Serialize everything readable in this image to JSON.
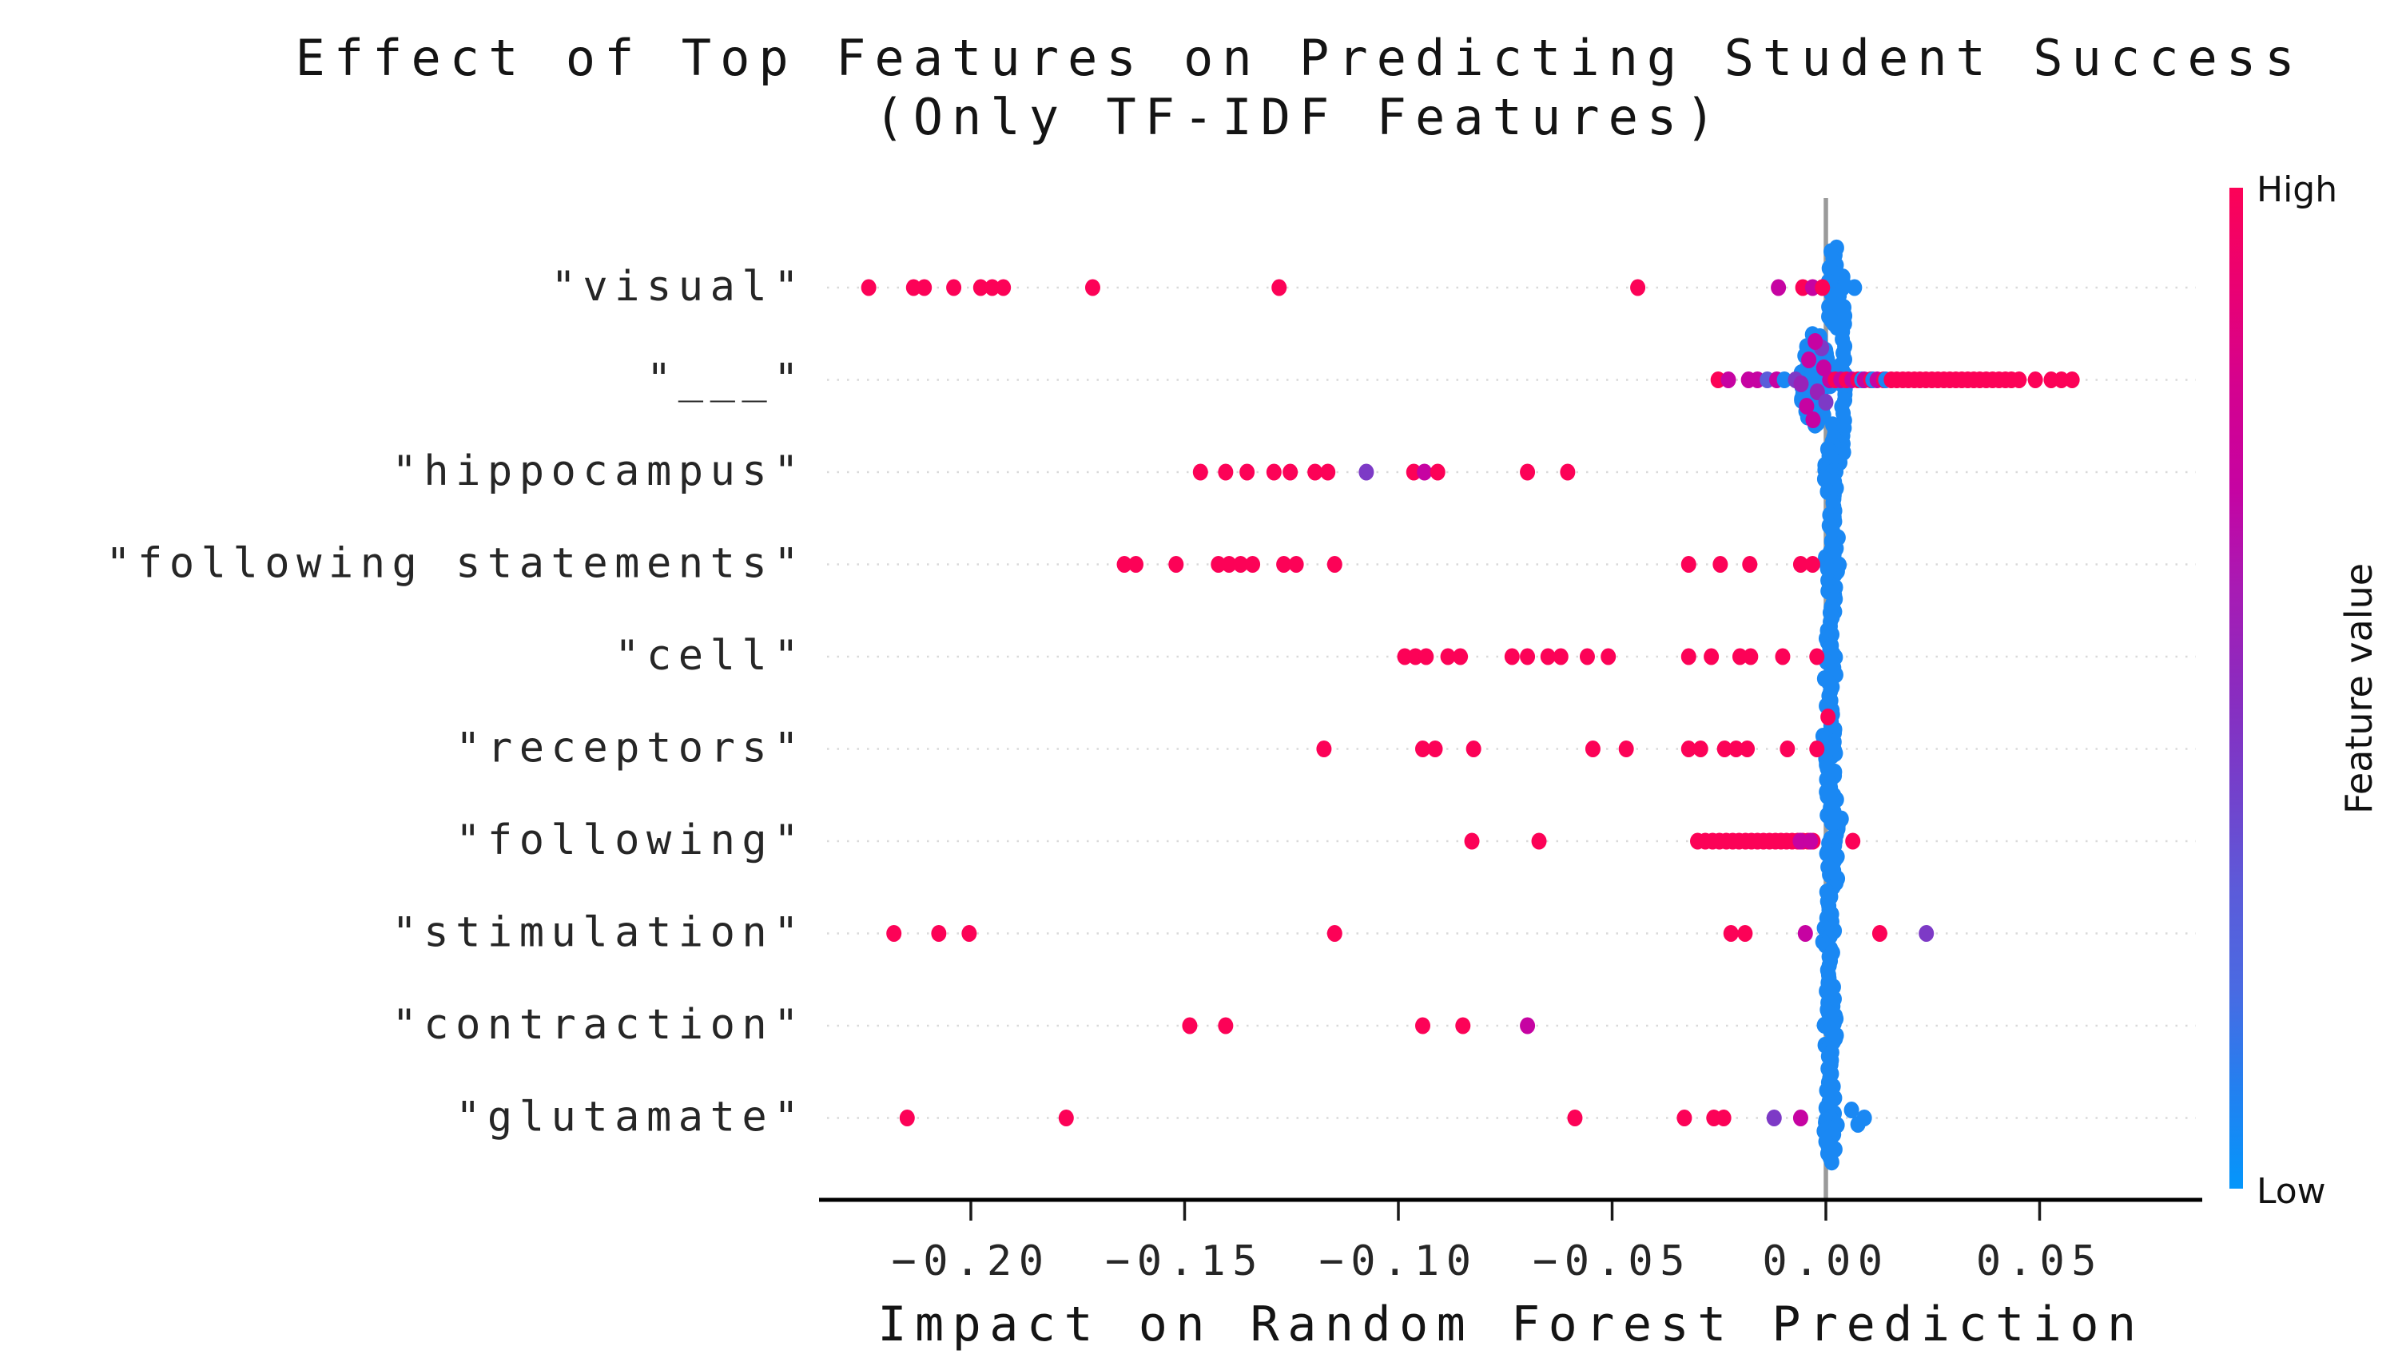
{
  "chart_data": {
    "type": "scatter",
    "subtype": "shap-beeswarm",
    "title_line1": "Effect of Top Features on Predicting Student Success",
    "title_line2": "(Only TF-IDF Features)",
    "xlabel": "Impact on Random Forest Prediction",
    "xlim": [
      -0.2346,
      0.0873
    ],
    "x_ticks": [
      -0.2,
      -0.15,
      -0.1,
      -0.05,
      0.0,
      0.05
    ],
    "x_tick_labels": [
      "−0.20",
      "−0.15",
      "−0.10",
      "−0.05",
      "0.00",
      "0.05"
    ],
    "grid": "dotted-horizontal-per-row",
    "zero_line_color": "#9a9a9a",
    "background": "#ffffff",
    "colorbar": {
      "high_label": "High",
      "low_label": "Low",
      "axis_label": "Feature value",
      "color_high": "#fc0257",
      "color_mid": "#8b2bbf",
      "color_low": "#0496fb",
      "gradient_top_to_bottom": [
        "#fc0257",
        "#ea0173",
        "#d4028f",
        "#c603a2",
        "#a81bb4",
        "#8b2bbf",
        "#7440cb",
        "#5c5bd9",
        "#4a6ae2",
        "#2380f0",
        "#0496fb"
      ]
    },
    "colormap_stops": [
      [
        0,
        "#0496fb"
      ],
      [
        0.26,
        "#4a6ae2"
      ],
      [
        0.4,
        "#6a50d0"
      ],
      [
        0.57,
        "#8b2bbf"
      ],
      [
        0.7,
        "#c603a2"
      ],
      [
        0.85,
        "#e6017e"
      ],
      [
        1,
        "#fc0257"
      ]
    ],
    "point_note": "points = [shap_value, y_jitter_px, feature_value_t(0=Low,1=High)]",
    "features": [
      {
        "label": "\"visual\"",
        "points": [
          [
            -0.2239,
            0,
            1
          ],
          [
            -0.2134,
            0,
            1
          ],
          [
            -0.2109,
            0,
            1
          ],
          [
            -0.204,
            0,
            1
          ],
          [
            -0.1977,
            0,
            1
          ],
          [
            -0.195,
            0,
            1
          ],
          [
            -0.1924,
            0,
            1
          ],
          [
            -0.1715,
            0,
            1
          ],
          [
            -0.1279,
            0,
            1
          ],
          [
            -0.044,
            0,
            1
          ],
          [
            -0.0111,
            0,
            0.7
          ],
          [
            -0.0054,
            0,
            1
          ],
          [
            -0.0031,
            0,
            0.7
          ],
          [
            -0.0008,
            0,
            1
          ],
          [
            0.0067,
            0,
            0.08
          ]
        ],
        "clusters": [
          {
            "cx": 0.002,
            "w": 0.0022,
            "h": 52,
            "n": 30,
            "t": 0.08
          }
        ]
      },
      {
        "label": "\"___\"",
        "points": [
          [
            -0.0252,
            0,
            1
          ],
          [
            -0.0228,
            0,
            0.7
          ],
          [
            -0.0181,
            0,
            0.7
          ],
          [
            -0.016,
            0,
            0.7
          ],
          [
            -0.0137,
            0,
            0.33
          ],
          [
            -0.0115,
            0,
            0.7
          ],
          [
            -0.0097,
            0,
            0.08
          ],
          [
            -0.0071,
            0,
            0.5
          ],
          [
            -0.004,
            -25,
            0.7
          ],
          [
            -0.002,
            15,
            0.6
          ],
          [
            -0.0045,
            33,
            0.7
          ],
          [
            -0.001,
            -40,
            0.5
          ],
          [
            -0.003,
            50,
            0.7
          ],
          [
            -0.0005,
            -15,
            0.7
          ],
          [
            -0.0058,
            5,
            0.6
          ],
          [
            0.0,
            28,
            0.5
          ],
          [
            -0.0025,
            -48,
            0.7
          ],
          [
            0.0009,
            0,
            0.7
          ],
          [
            0.0022,
            0,
            1
          ],
          [
            0.0035,
            0,
            0.7
          ],
          [
            0.0048,
            0,
            1
          ],
          [
            0.0061,
            0,
            0.7
          ],
          [
            0.0075,
            0,
            1
          ],
          [
            0.0084,
            0,
            0.08
          ],
          [
            0.009,
            0,
            0.7
          ],
          [
            0.0105,
            0,
            1
          ],
          [
            0.011,
            0,
            0.08
          ],
          [
            0.012,
            0,
            0.7
          ],
          [
            0.0135,
            0,
            1
          ],
          [
            0.014,
            0,
            0.08
          ],
          [
            0.0153,
            0,
            1
          ],
          [
            0.0166,
            0,
            1
          ],
          [
            0.018,
            0,
            1
          ],
          [
            0.0193,
            0,
            1
          ],
          [
            0.0207,
            0,
            1
          ],
          [
            0.022,
            0,
            1
          ],
          [
            0.0234,
            0,
            1
          ],
          [
            0.0248,
            0,
            1
          ],
          [
            0.0262,
            0,
            1
          ],
          [
            0.0276,
            0,
            1
          ],
          [
            0.029,
            0,
            1
          ],
          [
            0.0304,
            0,
            1
          ],
          [
            0.0318,
            0,
            1
          ],
          [
            0.0332,
            0,
            1
          ],
          [
            0.0346,
            0,
            1
          ],
          [
            0.036,
            0,
            1
          ],
          [
            0.0375,
            0,
            1
          ],
          [
            0.039,
            0,
            1
          ],
          [
            0.0405,
            0,
            1
          ],
          [
            0.042,
            0,
            1
          ],
          [
            0.0434,
            0,
            1
          ],
          [
            0.0452,
            0,
            1
          ],
          [
            0.049,
            0,
            1
          ],
          [
            0.0527,
            0,
            1
          ],
          [
            0.0551,
            0,
            1
          ],
          [
            0.0576,
            0,
            1
          ]
        ],
        "clusters": [
          {
            "cx": -0.0024,
            "w": 0.004,
            "h": 58,
            "n": 60,
            "t": 0.08
          },
          {
            "cx": 0.0041,
            "w": 0.0007,
            "h": 96,
            "n": 24,
            "t": 0.08
          }
        ]
      },
      {
        "label": "\"hippocampus\"",
        "points": [
          [
            -0.1463,
            0,
            1
          ],
          [
            -0.1404,
            0,
            1
          ],
          [
            -0.1354,
            0,
            1
          ],
          [
            -0.1291,
            0,
            1
          ],
          [
            -0.1253,
            0,
            1
          ],
          [
            -0.1195,
            0,
            1
          ],
          [
            -0.1165,
            0,
            1
          ],
          [
            -0.1075,
            0,
            0.5
          ],
          [
            -0.0964,
            0,
            1
          ],
          [
            -0.0939,
            0,
            0.7
          ],
          [
            -0.0908,
            0,
            1
          ],
          [
            -0.0698,
            0,
            1
          ],
          [
            -0.0604,
            0,
            1
          ]
        ],
        "clusters": [
          {
            "cx": 0.0016,
            "w": 0.002,
            "h": 62,
            "n": 30,
            "t": 0.08
          }
        ]
      },
      {
        "label": "\"following statements\"",
        "points": [
          [
            -0.1641,
            0,
            1
          ],
          [
            -0.1614,
            0,
            1
          ],
          [
            -0.152,
            0,
            1
          ],
          [
            -0.1421,
            0,
            1
          ],
          [
            -0.1396,
            0,
            1
          ],
          [
            -0.1369,
            0,
            1
          ],
          [
            -0.1341,
            0,
            1
          ],
          [
            -0.1268,
            0,
            1
          ],
          [
            -0.1239,
            0,
            1
          ],
          [
            -0.1149,
            0,
            1
          ],
          [
            -0.0321,
            0,
            1
          ],
          [
            -0.0247,
            0,
            1
          ],
          [
            -0.0178,
            0,
            1
          ],
          [
            -0.0059,
            0,
            1
          ],
          [
            -0.0031,
            0,
            1
          ]
        ],
        "clusters": [
          {
            "cx": 0.0016,
            "w": 0.002,
            "h": 62,
            "n": 30,
            "t": 0.08
          }
        ]
      },
      {
        "label": "\"cell\"",
        "points": [
          [
            -0.0985,
            0,
            1
          ],
          [
            -0.096,
            0,
            1
          ],
          [
            -0.0935,
            0,
            1
          ],
          [
            -0.0884,
            0,
            1
          ],
          [
            -0.0855,
            0,
            1
          ],
          [
            -0.0734,
            0,
            1
          ],
          [
            -0.0698,
            0,
            1
          ],
          [
            -0.065,
            0,
            1
          ],
          [
            -0.062,
            0,
            1
          ],
          [
            -0.0558,
            0,
            1
          ],
          [
            -0.0509,
            0,
            1
          ],
          [
            -0.0321,
            0,
            1
          ],
          [
            -0.0268,
            0,
            1
          ],
          [
            -0.0201,
            0,
            1
          ],
          [
            -0.0176,
            0,
            1
          ],
          [
            -0.0101,
            0,
            1
          ],
          [
            -0.0021,
            0,
            1
          ]
        ],
        "clusters": [
          {
            "cx": 0.001,
            "w": 0.0016,
            "h": 58,
            "n": 26,
            "t": 0.08
          }
        ]
      },
      {
        "label": "\"receptors\"",
        "points": [
          [
            -0.1174,
            0,
            1
          ],
          [
            -0.0943,
            0,
            1
          ],
          [
            -0.0914,
            0,
            1
          ],
          [
            -0.0824,
            0,
            1
          ],
          [
            -0.0545,
            0,
            1
          ],
          [
            -0.0467,
            0,
            1
          ],
          [
            -0.0321,
            0,
            1
          ],
          [
            -0.0293,
            0,
            1
          ],
          [
            -0.0237,
            0,
            1
          ],
          [
            -0.021,
            0,
            1
          ],
          [
            -0.0184,
            0,
            1
          ],
          [
            -0.009,
            0,
            1
          ],
          [
            -0.0021,
            0,
            1
          ],
          [
            0.0005,
            -40,
            1
          ]
        ],
        "clusters": [
          {
            "cx": 0.0008,
            "w": 0.0018,
            "h": 62,
            "n": 30,
            "t": 0.08
          }
        ]
      },
      {
        "label": "\"following\"",
        "points": [
          [
            -0.0828,
            0,
            1
          ],
          [
            -0.0671,
            0,
            1
          ],
          [
            -0.03,
            0,
            1
          ],
          [
            -0.0282,
            0,
            1
          ],
          [
            -0.0265,
            0,
            1
          ],
          [
            -0.0249,
            0,
            1
          ],
          [
            -0.0233,
            0,
            1
          ],
          [
            -0.0218,
            0,
            1
          ],
          [
            -0.0203,
            0,
            1
          ],
          [
            -0.0188,
            0,
            1
          ],
          [
            -0.0174,
            0,
            1
          ],
          [
            -0.016,
            0,
            1
          ],
          [
            -0.0146,
            0,
            1
          ],
          [
            -0.0132,
            0,
            1
          ],
          [
            -0.0118,
            0,
            1
          ],
          [
            -0.0105,
            0,
            1
          ],
          [
            -0.0092,
            0,
            1
          ],
          [
            -0.0079,
            0,
            1
          ],
          [
            -0.0066,
            0,
            1
          ],
          [
            -0.0054,
            0,
            1
          ],
          [
            -0.0042,
            0,
            1
          ],
          [
            -0.003,
            0,
            1
          ],
          [
            -0.006,
            0,
            0.7
          ],
          [
            -0.0036,
            0,
            0.7
          ],
          [
            0.0063,
            0,
            1
          ]
        ],
        "clusters": [
          {
            "cx": 0.0018,
            "w": 0.0022,
            "h": 60,
            "n": 30,
            "t": 0.08
          }
        ]
      },
      {
        "label": "\"stimulation\"",
        "points": [
          [
            -0.218,
            0,
            1
          ],
          [
            -0.2075,
            0,
            1
          ],
          [
            -0.2004,
            0,
            1
          ],
          [
            -0.1149,
            0,
            1
          ],
          [
            -0.0222,
            0,
            1
          ],
          [
            -0.0189,
            0,
            1
          ],
          [
            -0.0048,
            0,
            0.7
          ],
          [
            0.0126,
            0,
            1
          ],
          [
            0.0235,
            0,
            0.5
          ]
        ],
        "clusters": [
          {
            "cx": 0.0006,
            "w": 0.0014,
            "h": 55,
            "n": 24,
            "t": 0.08
          }
        ]
      },
      {
        "label": "\"contraction\"",
        "points": [
          [
            -0.1488,
            0,
            1
          ],
          [
            -0.1404,
            0,
            1
          ],
          [
            -0.0943,
            0,
            1
          ],
          [
            -0.0849,
            0,
            1
          ],
          [
            -0.0698,
            0,
            0.7
          ]
        ],
        "clusters": [
          {
            "cx": 0.001,
            "w": 0.0016,
            "h": 62,
            "n": 30,
            "t": 0.08
          }
        ]
      },
      {
        "label": "\"glutamate\"",
        "points": [
          [
            -0.2149,
            0,
            1
          ],
          [
            -0.1777,
            0,
            1
          ],
          [
            -0.0587,
            0,
            1
          ],
          [
            -0.0331,
            0,
            1
          ],
          [
            -0.0262,
            0,
            1
          ],
          [
            -0.0239,
            0,
            1
          ],
          [
            -0.0121,
            0,
            0.5
          ],
          [
            -0.0059,
            0,
            0.7
          ],
          [
            0.006,
            -10,
            0.08
          ],
          [
            0.0075,
            8,
            0.08
          ],
          [
            0.009,
            0,
            0.08
          ]
        ],
        "clusters": [
          {
            "cx": 0.0012,
            "w": 0.0018,
            "h": 58,
            "n": 28,
            "t": 0.08
          }
        ]
      }
    ]
  }
}
